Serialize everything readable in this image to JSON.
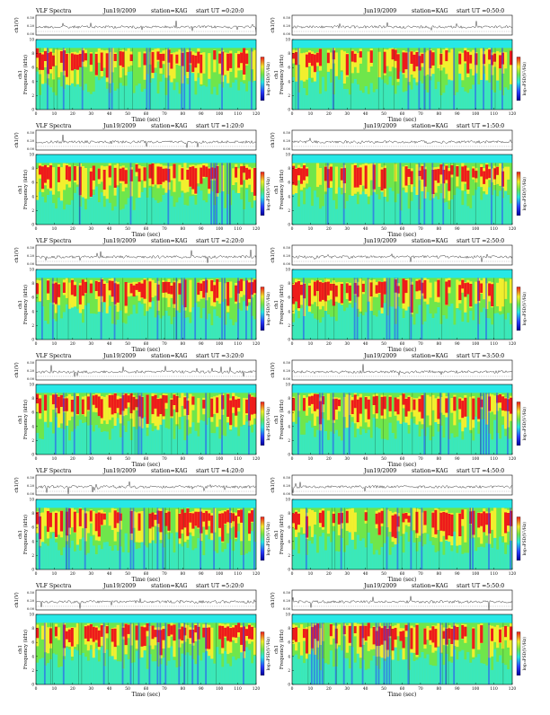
{
  "page": {
    "left_column_title": "VLF Spectra",
    "station_label": "station=KAG",
    "x_label": "Time (sec)",
    "y_label_top": "ch1(V)",
    "y_label_spec": "ch1",
    "y_label_spec2": "Frequency (kHz)",
    "colorbar_label": "log₁₀PSD(V²/Hz)",
    "colors": {
      "blue": "#2a3cff",
      "cyan": "#27e8e6",
      "green": "#6fe64b",
      "yellow": "#f2ef2e",
      "red": "#ee1b1b",
      "darkblue": "#00009c"
    }
  },
  "chart_data": [
    {
      "type": "heatmap",
      "date": "Jun19/2009",
      "start_ut": "start UT =0:20:0",
      "x": [
        0,
        10,
        20,
        30,
        40,
        50,
        60,
        70,
        80,
        90,
        100,
        110,
        120
      ],
      "y_spectrogram": [
        0,
        2,
        4,
        6,
        8,
        10
      ],
      "y_amplitude": [
        0.0,
        0.2,
        0.5
      ],
      "xlabel": "Time (sec)",
      "ylabel": "Frequency (kHz)",
      "colorbar": "log10PSD(V^2/Hz)"
    },
    {
      "type": "heatmap",
      "date": "Jun19/2009",
      "start_ut": "start UT =0:50:0",
      "x": [
        0,
        10,
        20,
        30,
        40,
        50,
        60,
        70,
        80,
        90,
        100,
        110,
        120
      ],
      "y_spectrogram": [
        0,
        2,
        4,
        6,
        8,
        10
      ],
      "y_amplitude": [
        0.0,
        0.2,
        0.5
      ],
      "xlabel": "Time (sec)",
      "ylabel": "Frequency (kHz)",
      "colorbar": "log10PSD(V^2/Hz)"
    },
    {
      "type": "heatmap",
      "date": "Jun19/2009",
      "start_ut": "start UT =1:20:0",
      "x": [
        0,
        10,
        20,
        30,
        40,
        50,
        60,
        70,
        80,
        90,
        100,
        110,
        120
      ],
      "y_spectrogram": [
        0,
        2,
        4,
        6,
        8,
        10
      ],
      "y_amplitude": [
        0.0,
        0.2,
        0.5
      ],
      "xlabel": "Time (sec)",
      "ylabel": "Frequency (kHz)",
      "colorbar": "log10PSD(V^2/Hz)"
    },
    {
      "type": "heatmap",
      "date": "Jun19/2009",
      "start_ut": "start UT =1:50:0",
      "x": [
        0,
        10,
        20,
        30,
        40,
        50,
        60,
        70,
        80,
        90,
        100,
        110,
        120
      ],
      "y_spectrogram": [
        0,
        2,
        4,
        6,
        8,
        10
      ],
      "y_amplitude": [
        0.0,
        0.2,
        0.5
      ],
      "xlabel": "Time (sec)",
      "ylabel": "Frequency (kHz)",
      "colorbar": "log10PSD(V^2/Hz)"
    },
    {
      "type": "heatmap",
      "date": "Jun19/2009",
      "start_ut": "start UT =2:20:0",
      "x": [
        0,
        10,
        20,
        30,
        40,
        50,
        60,
        70,
        80,
        90,
        100,
        110,
        120
      ],
      "y_spectrogram": [
        0,
        2,
        4,
        6,
        8,
        10
      ],
      "y_amplitude": [
        0.0,
        0.2,
        0.5
      ],
      "xlabel": "Time (sec)",
      "ylabel": "Frequency (kHz)",
      "colorbar": "log10PSD(V^2/Hz)"
    },
    {
      "type": "heatmap",
      "date": "Jun19/2009",
      "start_ut": "start UT =2:50:0",
      "x": [
        0,
        10,
        20,
        30,
        40,
        50,
        60,
        70,
        80,
        90,
        100,
        110,
        120
      ],
      "y_spectrogram": [
        0,
        2,
        4,
        6,
        8,
        10
      ],
      "y_amplitude": [
        0.0,
        0.2,
        0.5
      ],
      "xlabel": "Time (sec)",
      "ylabel": "Frequency (kHz)",
      "colorbar": "log10PSD(V^2/Hz)"
    },
    {
      "type": "heatmap",
      "date": "Jun19/2009",
      "start_ut": "start UT =3:20:0",
      "x": [
        0,
        10,
        20,
        30,
        40,
        50,
        60,
        70,
        80,
        90,
        100,
        110,
        120
      ],
      "y_spectrogram": [
        0,
        2,
        4,
        6,
        8,
        10
      ],
      "y_amplitude": [
        0.0,
        0.2,
        0.5
      ],
      "xlabel": "Time (sec)",
      "ylabel": "Frequency (kHz)",
      "colorbar": "log10PSD(V^2/Hz)"
    },
    {
      "type": "heatmap",
      "date": "Jun19/2009",
      "start_ut": "start UT =3:50:0",
      "x": [
        0,
        10,
        20,
        30,
        40,
        50,
        60,
        70,
        80,
        90,
        100,
        110,
        120
      ],
      "y_spectrogram": [
        0,
        2,
        4,
        6,
        8,
        10
      ],
      "y_amplitude": [
        0.0,
        0.2,
        0.5
      ],
      "xlabel": "Time (sec)",
      "ylabel": "Frequency (kHz)",
      "colorbar": "log10PSD(V^2/Hz)"
    },
    {
      "type": "heatmap",
      "date": "Jun19/2009",
      "start_ut": "start UT =4:20:0",
      "x": [
        0,
        10,
        20,
        30,
        40,
        50,
        60,
        70,
        80,
        90,
        100,
        110,
        120
      ],
      "y_spectrogram": [
        0,
        2,
        4,
        6,
        8,
        10
      ],
      "y_amplitude": [
        0.0,
        0.2,
        0.5
      ],
      "xlabel": "Time (sec)",
      "ylabel": "Frequency (kHz)",
      "colorbar": "log10PSD(V^2/Hz)"
    },
    {
      "type": "heatmap",
      "date": "Jun19/2009",
      "start_ut": "start UT =4:50:0",
      "x": [
        0,
        10,
        20,
        30,
        40,
        50,
        60,
        70,
        80,
        90,
        100,
        110,
        120
      ],
      "y_spectrogram": [
        0,
        2,
        4,
        6,
        8,
        10
      ],
      "y_amplitude": [
        0.0,
        0.2,
        0.5
      ],
      "xlabel": "Time (sec)",
      "ylabel": "Frequency (kHz)",
      "colorbar": "log10PSD(V^2/Hz)"
    },
    {
      "type": "heatmap",
      "date": "Jun19/2009",
      "start_ut": "start UT =5:20:0",
      "x": [
        0,
        10,
        20,
        30,
        40,
        50,
        60,
        70,
        80,
        90,
        100,
        110,
        120
      ],
      "y_spectrogram": [
        0,
        2,
        4,
        6,
        8,
        10
      ],
      "y_amplitude": [
        0.0,
        0.2,
        0.5
      ],
      "xlabel": "Time (sec)",
      "ylabel": "Frequency (kHz)",
      "colorbar": "log10PSD(V^2/Hz)"
    },
    {
      "type": "heatmap",
      "date": "Jun19/2009",
      "start_ut": "start UT =5:50:0",
      "x": [
        0,
        10,
        20,
        30,
        40,
        50,
        60,
        70,
        80,
        90,
        100,
        110,
        120
      ],
      "y_spectrogram": [
        0,
        2,
        4,
        6,
        8,
        10
      ],
      "y_amplitude": [
        0.0,
        0.2,
        0.5
      ],
      "xlabel": "Time (sec)",
      "ylabel": "Frequency (kHz)",
      "colorbar": "log10PSD(V^2/Hz)"
    }
  ]
}
